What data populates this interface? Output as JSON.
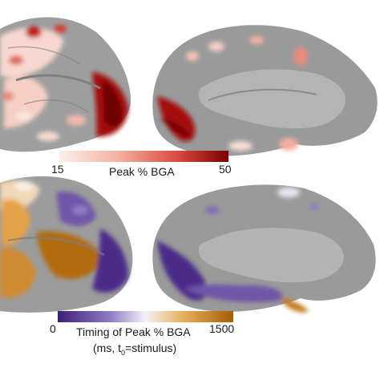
{
  "top_colorbar": {
    "min": "15",
    "max": "50",
    "title": "Peak % BGA",
    "colors": [
      "#fbefea",
      "#f3b1a0",
      "#d94a3d",
      "#7a0000"
    ]
  },
  "bottom_colorbar": {
    "min": "0",
    "max": "1500",
    "title": "Timing of Peak % BGA",
    "subtitle_pre": "(ms, t",
    "subtitle_sub": "0",
    "subtitle_post": "=stimulus)",
    "colors": [
      "#3d1f78",
      "#8f7bc6",
      "#f4f1f7",
      "#e7ad57",
      "#a35e05"
    ]
  },
  "panels": [
    "lateral-hemisphere-top",
    "medial-hemisphere-top",
    "lateral-hemisphere-bottom",
    "medial-hemisphere-bottom"
  ]
}
